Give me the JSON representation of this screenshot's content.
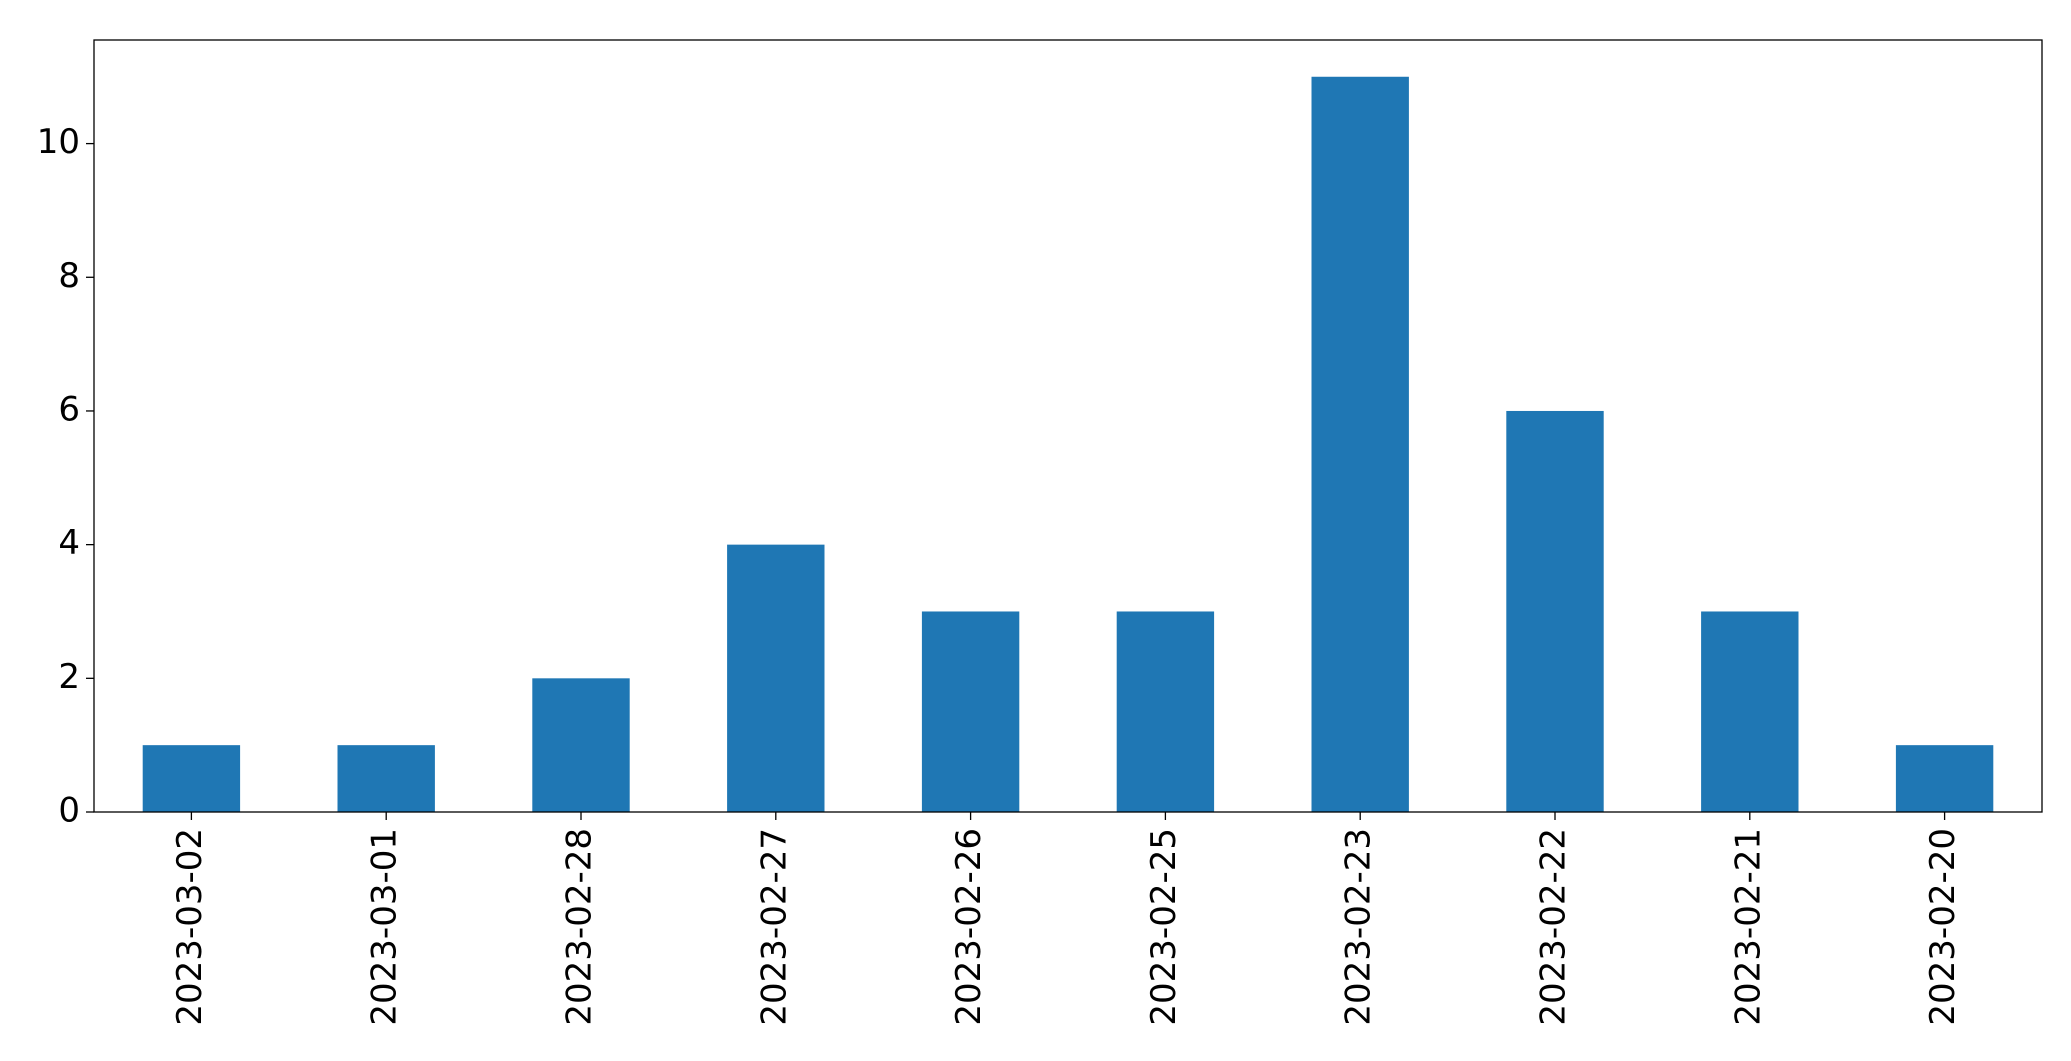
{
  "chart_data": {
    "type": "bar",
    "categories": [
      "2023-03-02",
      "2023-03-01",
      "2023-02-28",
      "2023-02-27",
      "2023-02-26",
      "2023-02-25",
      "2023-02-23",
      "2023-02-22",
      "2023-02-21",
      "2023-02-20"
    ],
    "values": [
      1,
      1,
      2,
      4,
      3,
      3,
      11,
      6,
      3,
      1
    ],
    "color": "#1f77b4",
    "ylim": [
      0,
      11.55
    ],
    "yticks": [
      0,
      2,
      4,
      6,
      8,
      10
    ],
    "grid": false
  }
}
